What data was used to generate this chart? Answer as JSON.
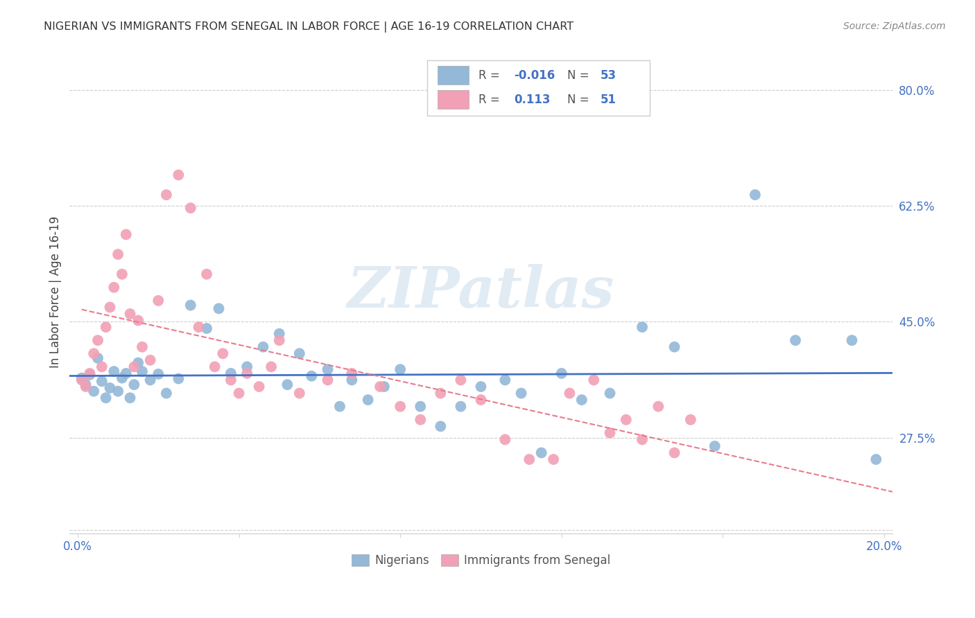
{
  "title": "NIGERIAN VS IMMIGRANTS FROM SENEGAL IN LABOR FORCE | AGE 16-19 CORRELATION CHART",
  "source": "Source: ZipAtlas.com",
  "ylabel": "In Labor Force | Age 16-19",
  "xlim": [
    -0.002,
    0.202
  ],
  "ylim": [
    0.13,
    0.86
  ],
  "ytick_positions": [
    0.275,
    0.45,
    0.625,
    0.8
  ],
  "ytick_labels": [
    "27.5%",
    "45.0%",
    "62.5%",
    "80.0%"
  ],
  "xtick_positions": [
    0.0,
    0.04,
    0.08,
    0.12,
    0.16,
    0.2
  ],
  "xtick_labels": [
    "0.0%",
    "",
    "",
    "",
    "",
    "20.0%"
  ],
  "color_blue": "#93b8d8",
  "color_pink": "#f2a0b5",
  "color_blue_line": "#4472c4",
  "color_pink_line": "#e87b8c",
  "watermark": "ZIPatlas",
  "r_blue": -0.016,
  "n_blue": 53,
  "r_pink": 0.113,
  "n_pink": 51,
  "blue_x": [
    0.001,
    0.002,
    0.003,
    0.004,
    0.005,
    0.006,
    0.007,
    0.008,
    0.009,
    0.01,
    0.011,
    0.012,
    0.013,
    0.014,
    0.015,
    0.016,
    0.018,
    0.02,
    0.022,
    0.025,
    0.028,
    0.032,
    0.035,
    0.038,
    0.042,
    0.046,
    0.05,
    0.052,
    0.055,
    0.058,
    0.062,
    0.065,
    0.068,
    0.072,
    0.076,
    0.08,
    0.085,
    0.09,
    0.095,
    0.1,
    0.106,
    0.11,
    0.115,
    0.12,
    0.125,
    0.132,
    0.14,
    0.148,
    0.158,
    0.168,
    0.178,
    0.192,
    0.198
  ],
  "blue_y": [
    0.365,
    0.355,
    0.37,
    0.345,
    0.395,
    0.36,
    0.335,
    0.35,
    0.375,
    0.345,
    0.365,
    0.372,
    0.335,
    0.355,
    0.388,
    0.375,
    0.362,
    0.371,
    0.342,
    0.364,
    0.475,
    0.44,
    0.47,
    0.372,
    0.382,
    0.412,
    0.432,
    0.355,
    0.402,
    0.368,
    0.378,
    0.322,
    0.362,
    0.332,
    0.352,
    0.378,
    0.322,
    0.292,
    0.322,
    0.352,
    0.362,
    0.342,
    0.252,
    0.372,
    0.332,
    0.342,
    0.442,
    0.412,
    0.262,
    0.642,
    0.422,
    0.422,
    0.242
  ],
  "pink_x": [
    0.001,
    0.002,
    0.003,
    0.004,
    0.005,
    0.006,
    0.007,
    0.008,
    0.009,
    0.01,
    0.011,
    0.012,
    0.013,
    0.014,
    0.015,
    0.016,
    0.018,
    0.02,
    0.022,
    0.025,
    0.028,
    0.03,
    0.032,
    0.034,
    0.036,
    0.038,
    0.04,
    0.042,
    0.045,
    0.048,
    0.05,
    0.055,
    0.062,
    0.068,
    0.075,
    0.08,
    0.085,
    0.09,
    0.095,
    0.1,
    0.106,
    0.112,
    0.118,
    0.122,
    0.128,
    0.132,
    0.136,
    0.14,
    0.144,
    0.148,
    0.152
  ],
  "pink_y": [
    0.362,
    0.352,
    0.372,
    0.402,
    0.422,
    0.382,
    0.442,
    0.472,
    0.502,
    0.552,
    0.522,
    0.582,
    0.462,
    0.382,
    0.452,
    0.412,
    0.392,
    0.482,
    0.642,
    0.672,
    0.622,
    0.442,
    0.522,
    0.382,
    0.402,
    0.362,
    0.342,
    0.372,
    0.352,
    0.382,
    0.422,
    0.342,
    0.362,
    0.372,
    0.352,
    0.322,
    0.302,
    0.342,
    0.362,
    0.332,
    0.272,
    0.242,
    0.242,
    0.342,
    0.362,
    0.282,
    0.302,
    0.272,
    0.322,
    0.252,
    0.302
  ]
}
